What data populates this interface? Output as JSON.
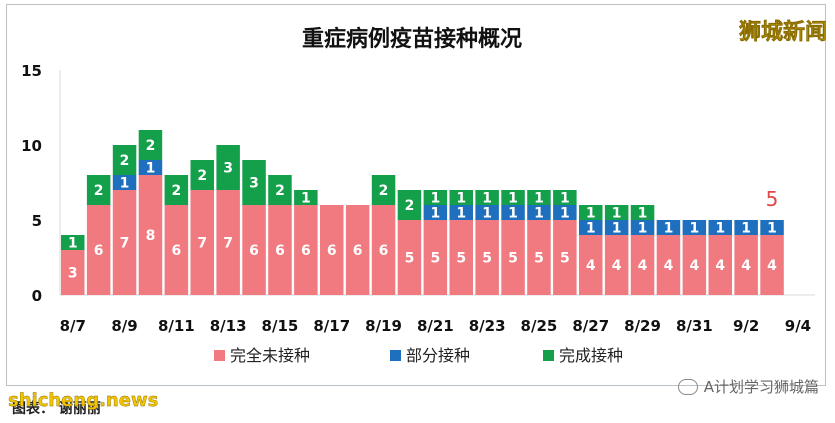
{
  "chart_data": {
    "type": "bar",
    "stacked": true,
    "title": "重症病例疫苗接种概况",
    "categories": [
      "8/7",
      "8/8",
      "8/9",
      "8/10",
      "8/11",
      "8/12",
      "8/13",
      "8/14",
      "8/15",
      "8/16",
      "8/17",
      "8/18",
      "8/19",
      "8/20",
      "8/21",
      "8/22",
      "8/23",
      "8/24",
      "8/25",
      "8/26",
      "8/27",
      "8/28",
      "8/29",
      "8/30",
      "8/31",
      "9/1",
      "9/2",
      "9/3"
    ],
    "x_tick_labels": [
      "8/7",
      "8/9",
      "8/11",
      "8/13",
      "8/15",
      "8/17",
      "8/19",
      "8/21",
      "8/23",
      "8/25",
      "8/27",
      "8/29",
      "8/31",
      "9/2",
      "9/4"
    ],
    "ylim": [
      0,
      15
    ],
    "yticks": [
      0,
      5,
      10,
      15
    ],
    "series": [
      {
        "name": "完全未接种",
        "color": "#f07a7f",
        "values": [
          3,
          6,
          7,
          8,
          6,
          7,
          7,
          6,
          6,
          6,
          6,
          6,
          6,
          5,
          5,
          5,
          5,
          5,
          5,
          5,
          4,
          4,
          4,
          4,
          4,
          4,
          4,
          4
        ]
      },
      {
        "name": "部分接种",
        "color": "#1f6fbf",
        "values": [
          0,
          0,
          1,
          1,
          0,
          0,
          0,
          0,
          0,
          0,
          0,
          0,
          0,
          0,
          1,
          1,
          1,
          1,
          1,
          1,
          1,
          1,
          1,
          1,
          1,
          1,
          1,
          1
        ]
      },
      {
        "name": "完成接种",
        "color": "#14a04a",
        "values": [
          1,
          2,
          2,
          2,
          2,
          2,
          3,
          3,
          2,
          1,
          0,
          0,
          2,
          2,
          1,
          1,
          1,
          1,
          1,
          1,
          1,
          1,
          1,
          0,
          0,
          0,
          0,
          0
        ]
      }
    ],
    "annotation": {
      "text": "5",
      "category": "9/3",
      "color": "#e04848"
    },
    "legend_position": "bottom",
    "grid": false
  },
  "watermarks": {
    "top_right": "狮城新闻",
    "bottom_left": "shicheng.news",
    "wechat": "A计划学习狮城篇"
  },
  "source_text": "图表： 谢丽丽"
}
